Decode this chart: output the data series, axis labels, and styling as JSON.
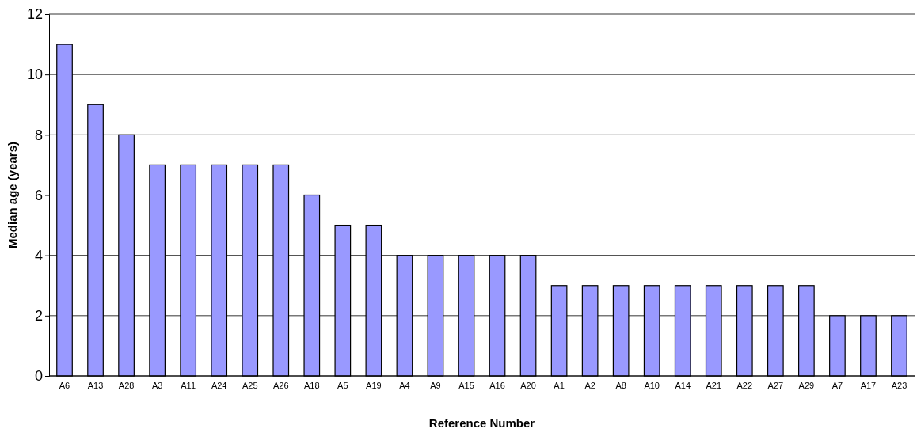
{
  "chart_data": {
    "type": "bar",
    "xlabel": "Reference Number",
    "ylabel": "Median age (years)",
    "categories": [
      "A6",
      "A13",
      "A28",
      "A3",
      "A11",
      "A24",
      "A25",
      "A26",
      "A18",
      "A5",
      "A19",
      "A4",
      "A9",
      "A15",
      "A16",
      "A20",
      "A1",
      "A2",
      "A8",
      "A10",
      "A14",
      "A21",
      "A22",
      "A27",
      "A29",
      "A7",
      "A17",
      "A23"
    ],
    "values": [
      11,
      9,
      8,
      7,
      7,
      7,
      7,
      7,
      6,
      5,
      5,
      4,
      4,
      4,
      4,
      4,
      3,
      3,
      3,
      3,
      3,
      3,
      3,
      3,
      3,
      2,
      2,
      2
    ],
    "color": "#9999ff",
    "ylim": [
      0,
      12
    ],
    "yticks": [
      0,
      2,
      4,
      6,
      8,
      10,
      12
    ],
    "grid": "y"
  }
}
